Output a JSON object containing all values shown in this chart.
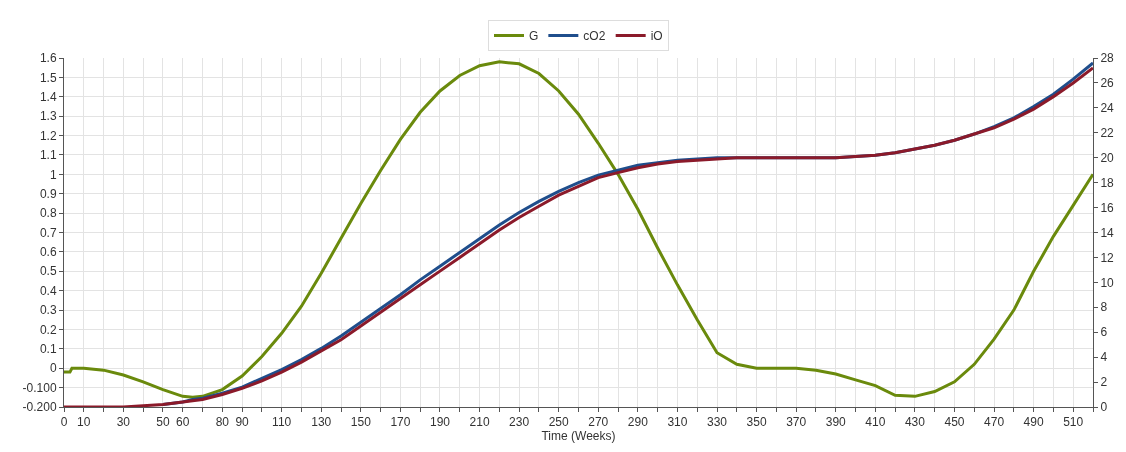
{
  "chart_data": {
    "type": "line",
    "xlabel": "Time (Weeks)",
    "x": [
      0,
      3,
      4,
      10,
      20,
      30,
      40,
      50,
      60,
      65,
      70,
      80,
      90,
      100,
      110,
      120,
      130,
      140,
      150,
      160,
      170,
      180,
      190,
      200,
      210,
      220,
      230,
      240,
      250,
      260,
      270,
      280,
      290,
      300,
      310,
      320,
      330,
      340,
      350,
      360,
      370,
      380,
      390,
      400,
      410,
      420,
      430,
      440,
      450,
      460,
      470,
      480,
      490,
      500,
      510,
      520
    ],
    "series": [
      {
        "name": "G",
        "color": "#6a8a0c",
        "axis": "y",
        "values": [
          -0.02,
          -0.02,
          0.0,
          0.0,
          -0.01,
          -0.035,
          -0.07,
          -0.11,
          -0.145,
          -0.15,
          -0.145,
          -0.11,
          -0.04,
          0.06,
          0.18,
          0.32,
          0.49,
          0.67,
          0.85,
          1.02,
          1.18,
          1.32,
          1.43,
          1.51,
          1.56,
          1.58,
          1.57,
          1.52,
          1.43,
          1.31,
          1.16,
          1.0,
          0.82,
          0.62,
          0.43,
          0.25,
          0.08,
          0.02,
          0.0,
          0.0,
          0.0,
          -0.01,
          -0.03,
          -0.06,
          -0.09,
          -0.14,
          -0.145,
          -0.12,
          -0.07,
          0.02,
          0.15,
          0.3,
          0.5,
          0.68,
          0.84,
          1.0
        ]
      },
      {
        "name": "cO2",
        "color": "#1f4e8c",
        "axis": "y2",
        "values": [
          null,
          null,
          null,
          null,
          null,
          null,
          null,
          0.2,
          0.4,
          0.6,
          0.7,
          1.1,
          1.6,
          2.3,
          3.0,
          3.8,
          4.7,
          5.7,
          6.8,
          7.9,
          9.0,
          10.2,
          11.3,
          12.4,
          13.5,
          14.6,
          15.6,
          16.5,
          17.3,
          18.0,
          18.6,
          19.0,
          19.4,
          19.6,
          19.8,
          19.9,
          20.0,
          20.0,
          20.0,
          20.0,
          20.0,
          20.0,
          20.0,
          20.1,
          20.2,
          20.4,
          20.7,
          21.0,
          21.4,
          21.9,
          22.5,
          23.2,
          24.1,
          25.1,
          26.3,
          27.6
        ]
      },
      {
        "name": "iO",
        "color": "#8b1a2a",
        "axis": "y2",
        "values": [
          0,
          0,
          0,
          0,
          0,
          0,
          0.1,
          0.2,
          0.4,
          0.5,
          0.6,
          1.0,
          1.5,
          2.1,
          2.8,
          3.6,
          4.5,
          5.4,
          6.5,
          7.6,
          8.7,
          9.8,
          10.9,
          12.0,
          13.1,
          14.2,
          15.2,
          16.1,
          17.0,
          17.7,
          18.4,
          18.8,
          19.2,
          19.5,
          19.7,
          19.8,
          19.9,
          20.0,
          20.0,
          20.0,
          20.0,
          20.0,
          20.0,
          20.1,
          20.2,
          20.4,
          20.7,
          21.0,
          21.4,
          21.9,
          22.4,
          23.1,
          23.9,
          24.9,
          26.0,
          27.2
        ]
      }
    ],
    "xlim": [
      0,
      520
    ],
    "xticks": [
      0,
      10,
      {
        "value": 20,
        "label": null
      },
      30,
      {
        "value": 40,
        "label": null
      },
      50,
      60,
      {
        "value": 70,
        "label": null
      },
      80,
      90,
      {
        "value": 100,
        "label": null
      },
      110,
      {
        "value": 120,
        "label": null
      },
      130,
      {
        "value": 140,
        "label": null
      },
      150,
      {
        "value": 160,
        "label": null
      },
      170,
      {
        "value": 180,
        "label": null
      },
      190,
      {
        "value": 200,
        "label": null
      },
      210,
      {
        "value": 220,
        "label": null
      },
      230,
      {
        "value": 240,
        "label": null
      },
      250,
      {
        "value": 260,
        "label": null
      },
      270,
      {
        "value": 280,
        "label": null
      },
      290,
      {
        "value": 300,
        "label": null
      },
      310,
      {
        "value": 320,
        "label": null
      },
      330,
      {
        "value": 340,
        "label": null
      },
      350,
      {
        "value": 360,
        "label": null
      },
      370,
      {
        "value": 380,
        "label": null
      },
      390,
      {
        "value": 400,
        "label": null
      },
      410,
      {
        "value": 420,
        "label": null
      },
      430,
      {
        "value": 440,
        "label": null
      },
      450,
      {
        "value": 460,
        "label": null
      },
      470,
      {
        "value": 480,
        "label": null
      },
      490,
      {
        "value": 500,
        "label": null
      },
      510,
      {
        "value": 520,
        "label": null
      }
    ],
    "ylim": [
      -0.2,
      1.6
    ],
    "yticks": [
      {
        "value": -0.2,
        "label": "-0.200"
      },
      {
        "value": -0.1,
        "label": "-0.100"
      },
      0,
      0.1,
      0.2,
      0.3,
      0.4,
      0.5,
      0.6,
      0.7,
      0.8,
      0.9,
      1,
      1.1,
      1.2,
      1.3,
      1.4,
      1.5,
      1.6
    ],
    "y2lim": [
      0,
      28
    ],
    "y2ticks": [
      0,
      2,
      4,
      6,
      8,
      10,
      12,
      14,
      16,
      18,
      20,
      22,
      24,
      26,
      28
    ],
    "grid": true,
    "legend": "top",
    "marker": "none",
    "line_style": "solid"
  }
}
